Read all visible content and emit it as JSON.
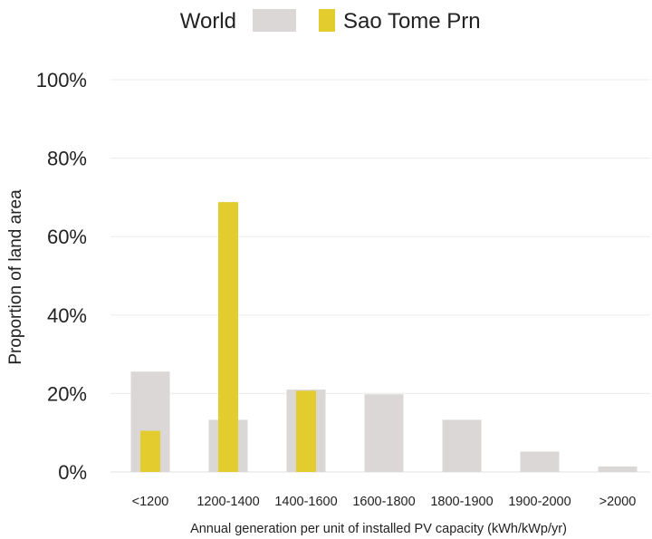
{
  "chart_data": {
    "type": "bar",
    "title": "",
    "xlabel": "Annual generation per unit of installed PV capacity (kWh/kWp/yr)",
    "ylabel": "Proportion of land area",
    "ylim": [
      0,
      100
    ],
    "yticks": [
      "0%",
      "20%",
      "40%",
      "60%",
      "80%",
      "100%"
    ],
    "ytick_values": [
      0,
      20,
      40,
      60,
      80,
      100
    ],
    "grid": true,
    "legend_position": "top-center",
    "categories": [
      "<1200",
      "1200-1400",
      "1400-1600",
      "1600-1800",
      "1800-1900",
      "1900-2000",
      ">2000"
    ],
    "series": [
      {
        "name": "World",
        "color": "#dcd7d7",
        "values": [
          25.6,
          13.3,
          21.0,
          19.8,
          13.3,
          5.2,
          1.4
        ]
      },
      {
        "name": "Sao Tome Prn",
        "color": "#e3cc2e",
        "values": [
          10.5,
          68.8,
          20.7,
          0,
          0,
          0,
          0
        ]
      }
    ]
  }
}
